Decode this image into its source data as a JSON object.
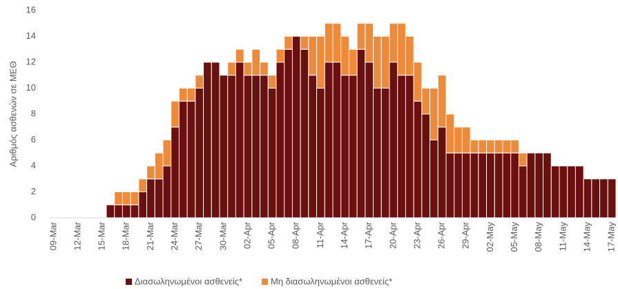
{
  "chart_data": {
    "type": "stacked_bar",
    "y_label": "Αριθμός ασθενών σε ΜΕΘ",
    "categories": [
      "09-Mar",
      null,
      null,
      "12-Mar",
      null,
      null,
      "15-Mar",
      null,
      null,
      "18-Mar",
      null,
      null,
      "21-Mar",
      null,
      null,
      "24-Mar",
      null,
      null,
      "27-Mar",
      null,
      null,
      "30-Mar",
      null,
      null,
      "02-Apr",
      null,
      null,
      "05-Apr",
      null,
      null,
      "08-Apr",
      null,
      null,
      "11-Apr",
      null,
      null,
      "14-Apr",
      null,
      null,
      "17-Apr",
      null,
      null,
      "20-Apr",
      null,
      null,
      "23-Apr",
      null,
      null,
      "26-Apr",
      null,
      null,
      "29-Apr",
      null,
      null,
      "02-May",
      null,
      null,
      "05-May",
      null,
      null,
      "08-May",
      null,
      null,
      "11-May",
      null,
      null,
      "14-May",
      null,
      null,
      "17-May"
    ],
    "series": [
      {
        "name": "Διασωληνωμένοι ασθενείς*",
        "color": "#6b0f0f",
        "values": [
          0,
          0,
          0,
          0,
          0,
          0,
          0,
          1,
          1,
          1,
          1,
          2,
          3,
          3,
          4,
          7,
          9,
          9,
          10,
          12,
          12,
          11,
          11,
          12,
          11,
          11,
          11,
          10,
          12,
          13,
          14,
          13,
          11,
          10,
          12,
          12,
          11,
          11,
          13,
          12,
          10,
          10,
          12,
          11,
          11,
          9,
          8,
          6,
          7,
          5,
          5,
          5,
          5,
          5,
          5,
          5,
          5,
          5,
          4,
          5,
          5,
          5,
          4,
          4,
          4,
          4,
          3,
          3,
          3,
          3
        ]
      },
      {
        "name": "Μη διασωληνωμένοι ασθενείς*",
        "color": "#ed8b3a",
        "values": [
          0,
          0,
          0,
          0,
          0,
          0,
          0,
          0,
          1,
          1,
          1,
          1,
          1,
          2,
          2,
          2,
          1,
          1,
          1,
          0,
          0,
          0,
          1,
          1,
          1,
          2,
          1,
          1,
          1,
          1,
          0,
          1,
          3,
          4,
          3,
          3,
          3,
          2,
          2,
          3,
          4,
          4,
          3,
          4,
          3,
          3,
          2,
          4,
          4,
          3,
          2,
          2,
          1,
          1,
          1,
          1,
          1,
          1,
          1,
          0,
          0,
          0,
          0,
          0,
          0,
          0,
          0,
          0,
          0,
          0
        ]
      }
    ],
    "ylim": [
      0,
      16
    ],
    "yticks": [
      0,
      2,
      4,
      6,
      8,
      10,
      12,
      14,
      16
    ],
    "grid": false
  }
}
